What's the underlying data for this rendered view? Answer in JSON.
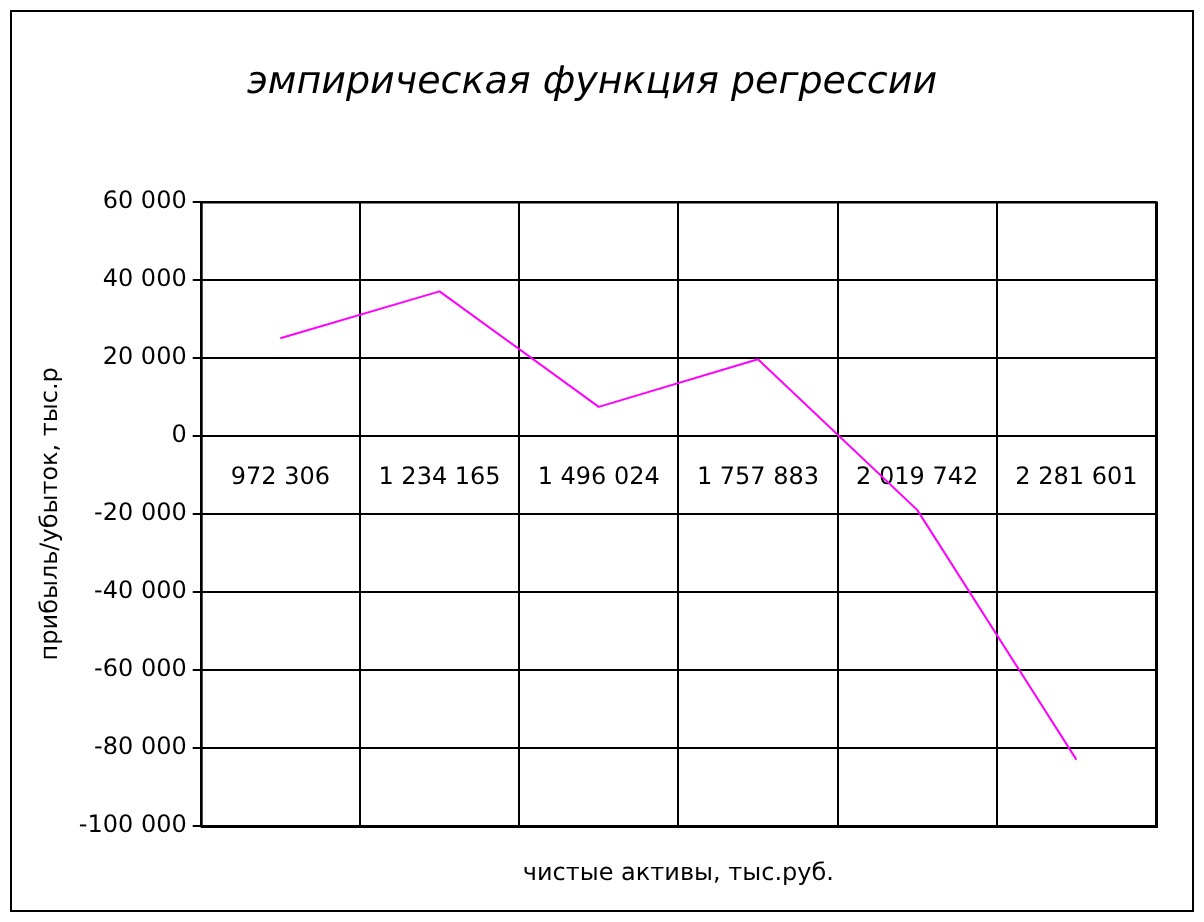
{
  "chart_data": {
    "type": "line",
    "title": "эмпирическая функция регрессии",
    "xlabel": "чистые активы, тыс.руб.",
    "ylabel": "прибыль/убыток, тыс.р",
    "categories": [
      "972 306",
      "1 234 165",
      "1 496 024",
      "1 757 883",
      "2 019 742",
      "2 281 601"
    ],
    "series": [
      {
        "color": "#ff00ff",
        "values": [
          25000,
          37000,
          7400,
          19600,
          -19000,
          -83000
        ]
      }
    ],
    "ylim": [
      -100000,
      60000
    ],
    "yticks": [
      {
        "value": -100000,
        "label": "-100 000"
      },
      {
        "value": -80000,
        "label": "-80 000"
      },
      {
        "value": -60000,
        "label": "-60 000"
      },
      {
        "value": -40000,
        "label": "-40 000"
      },
      {
        "value": -20000,
        "label": "-20 000"
      },
      0,
      {
        "value": 20000,
        "label": "20 000"
      },
      {
        "value": 40000,
        "label": "40 000"
      },
      {
        "value": 60000,
        "label": "60 000"
      }
    ],
    "grid": true,
    "legend": false,
    "marker": "none",
    "line_style": "solid"
  }
}
